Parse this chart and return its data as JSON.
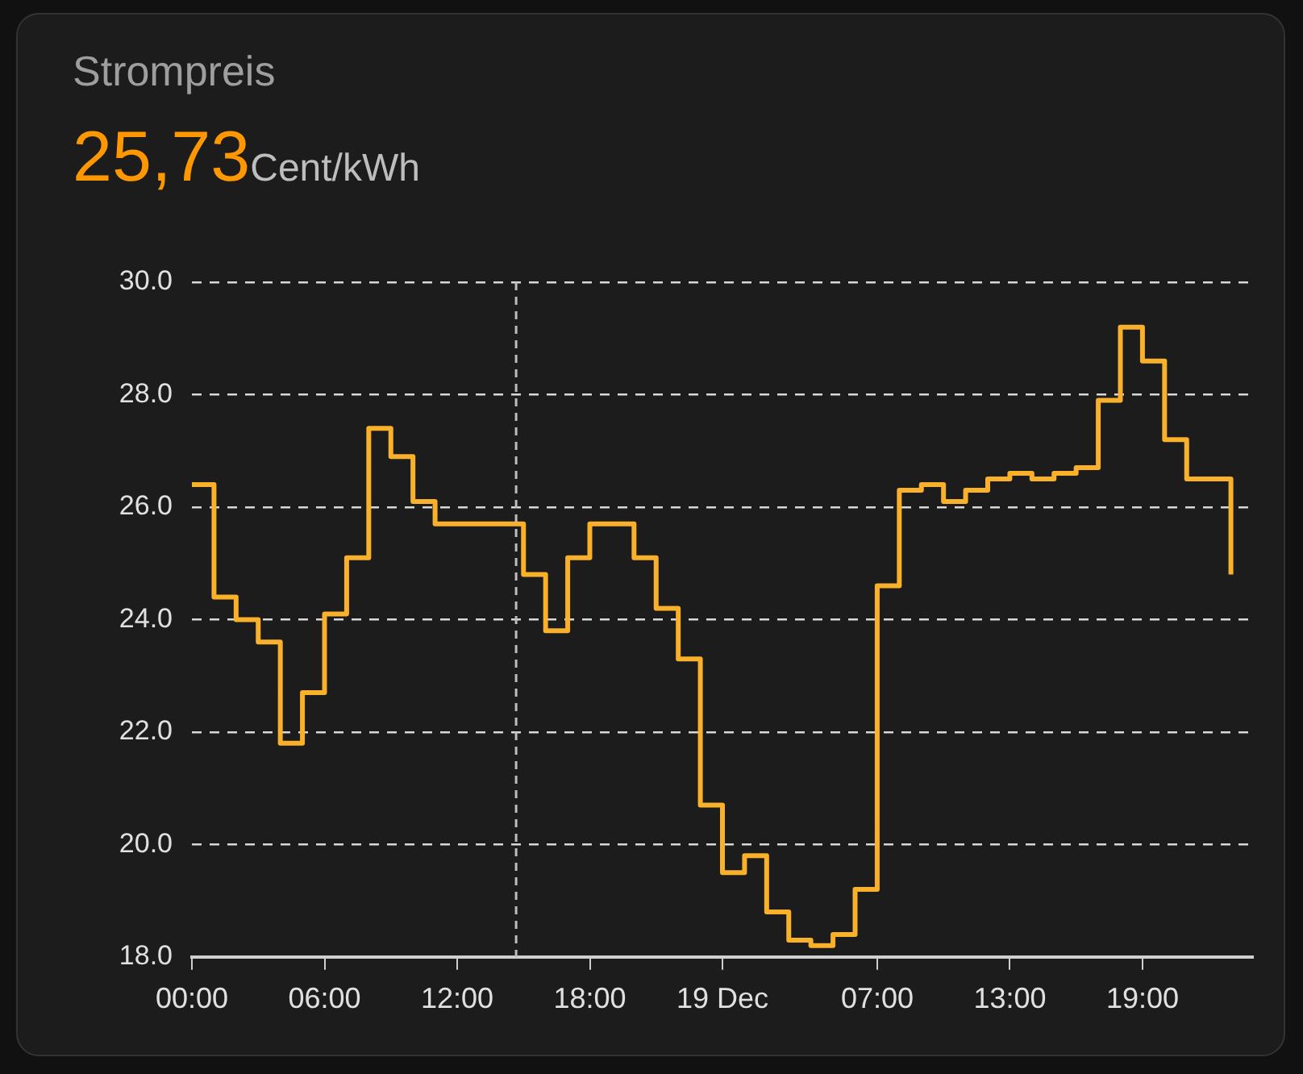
{
  "chart_data": {
    "type": "step",
    "title": "Strompreis",
    "subtitle": "25,73",
    "annotations": [
      "Cent/kWh"
    ],
    "x": [
      "--12-18T00:00",
      "--12-18T01:00",
      "--12-18T02:00",
      "--12-18T03:00",
      "--12-18T04:00",
      "--12-18T05:00",
      "--12-18T06:00",
      "--12-18T07:00",
      "--12-18T08:00",
      "--12-18T09:00",
      "--12-18T10:00",
      "--12-18T11:00",
      "--12-18T12:00",
      "--12-18T13:00",
      "--12-18T14:00",
      "--12-18T15:00",
      "--12-18T16:00",
      "--12-18T17:00",
      "--12-18T18:00",
      "--12-18T19:00",
      "--12-18T20:00",
      "--12-18T21:00",
      "--12-18T22:00",
      "--12-18T23:00",
      "--12-19T00:00",
      "--12-19T01:00",
      "--12-19T02:00",
      "--12-19T03:00",
      "--12-19T04:00",
      "--12-19T05:00",
      "--12-19T06:00",
      "--12-19T07:00",
      "--12-19T08:00",
      "--12-19T09:00",
      "--12-19T10:00",
      "--12-19T11:00",
      "--12-19T12:00",
      "--12-19T13:00",
      "--12-19T14:00",
      "--12-19T15:00",
      "--12-19T16:00",
      "--12-19T17:00",
      "--12-19T18:00",
      "--12-19T19:00",
      "--12-19T20:00",
      "--12-19T21:00",
      "--12-19T22:00",
      "--12-19T23:00"
    ],
    "series": [
      {
        "color": "#f9b02a",
        "values": [
          26.4,
          24.4,
          24.0,
          23.6,
          21.8,
          22.7,
          24.1,
          25.1,
          27.4,
          26.9,
          26.1,
          25.7,
          25.7,
          25.7,
          25.7,
          24.8,
          23.8,
          25.1,
          25.7,
          25.7,
          25.1,
          24.2,
          23.3,
          20.7,
          19.5,
          19.8,
          18.8,
          18.3,
          18.2,
          18.4,
          19.2,
          24.6,
          26.3,
          26.4,
          26.1,
          26.3,
          26.5,
          26.6,
          26.5,
          26.6,
          26.7,
          27.9,
          29.2,
          28.6,
          27.2,
          26.5,
          26.5,
          24.8
        ]
      }
    ],
    "xlim": [
      "--12-18T00:00",
      "--12-20T00:00"
    ],
    "xticks": [
      {
        "value": "--12-18T00:00",
        "label": "00:00"
      },
      {
        "value": "--12-18T06:00",
        "label": "06:00"
      },
      {
        "value": "--12-18T12:00",
        "label": "12:00"
      },
      {
        "value": "--12-18T18:00",
        "label": "18:00"
      },
      {
        "value": "--12-19T00:00",
        "label": "19 Dec"
      },
      {
        "value": "--12-19T07:00",
        "label": "07:00"
      },
      {
        "value": "--12-19T13:00",
        "label": "13:00"
      },
      {
        "value": "--12-19T19:00",
        "label": "19:00"
      }
    ],
    "ylim": [
      18,
      30
    ],
    "yticks": [
      {
        "value": 18,
        "label": "18.0"
      },
      {
        "value": 20,
        "label": "20.0"
      },
      {
        "value": 22,
        "label": "22.0"
      },
      {
        "value": 24,
        "label": "24.0"
      },
      {
        "value": 26,
        "label": "26.0"
      },
      {
        "value": 28,
        "label": "28.0"
      },
      {
        "value": 30,
        "label": "30.0"
      }
    ],
    "ref_lines": [
      {
        "axis": "x",
        "value": "--12-18T14:40",
        "color": "#bdbdbd",
        "line_style": "dashed"
      }
    ],
    "grid": "y",
    "legend": false,
    "marker": "none",
    "line_style": "solid"
  }
}
